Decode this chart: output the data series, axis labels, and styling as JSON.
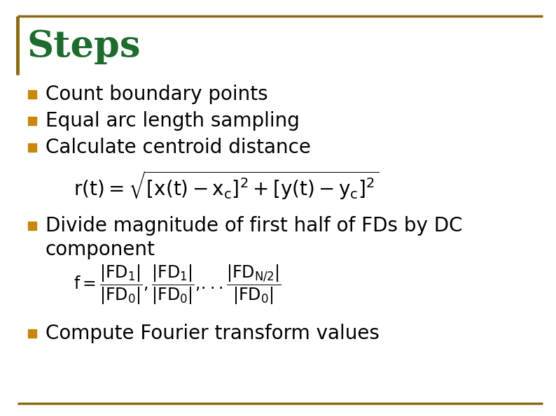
{
  "title": "Steps",
  "title_color": "#1E6B2E",
  "title_fontsize": 38,
  "background_color": "#FFFFFF",
  "border_color": "#8B6914",
  "bullet_color": "#C8860A",
  "bullet_items": [
    "Count boundary points",
    "Equal arc length sampling",
    "Calculate centroid distance"
  ],
  "bullet4_line1": "Divide magnitude of first half of FDs by DC",
  "bullet4_line2": "component",
  "bullet5": "Compute Fourier transform values",
  "text_color": "#000000",
  "text_fontsize": 20,
  "formula_fontsize": 17
}
